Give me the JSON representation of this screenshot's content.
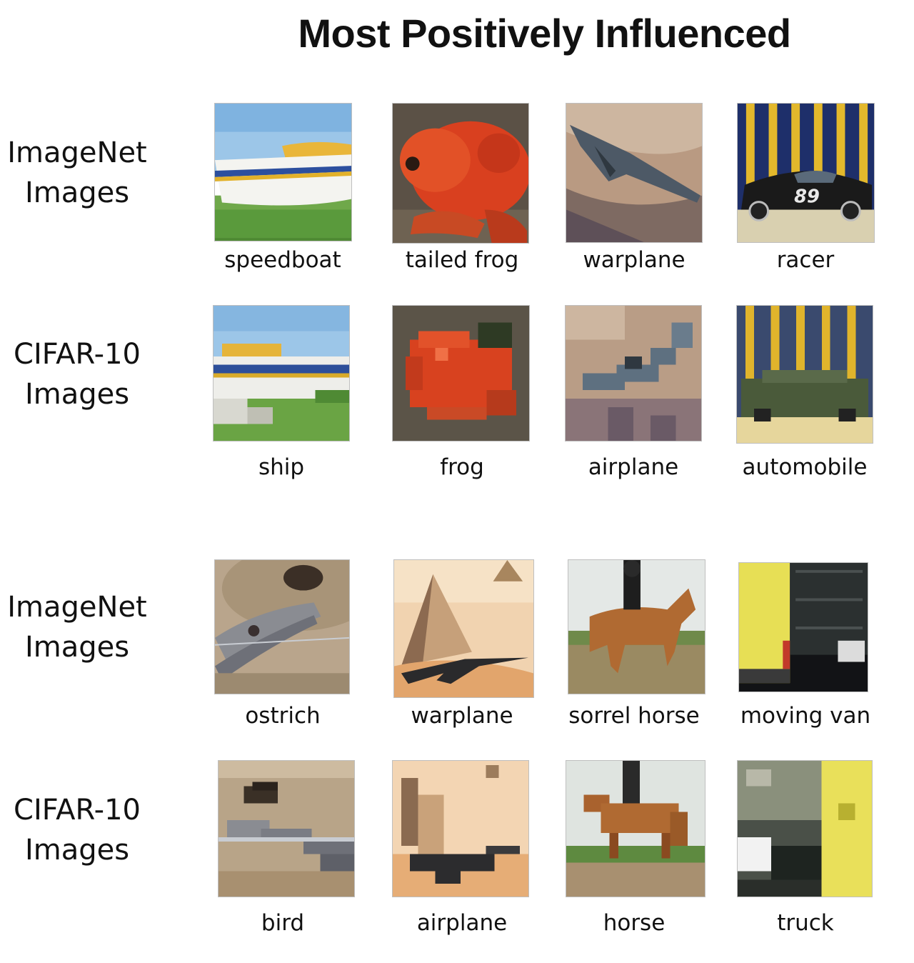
{
  "title": "Most Positively Influenced",
  "groups": [
    {
      "imagenet_label": [
        "ImageNet",
        "Images"
      ],
      "cifar_label": [
        "CIFAR-10",
        "Images"
      ],
      "imagenet_captions": [
        "speedboat",
        "tailed frog",
        "warplane",
        "racer"
      ],
      "cifar_captions": [
        "ship",
        "frog",
        "airplane",
        "automobile"
      ]
    },
    {
      "imagenet_label": [
        "ImageNet",
        "Images"
      ],
      "cifar_label": [
        "CIFAR-10",
        "Images"
      ],
      "imagenet_captions": [
        "ostrich",
        "warplane",
        "sorrel horse",
        "moving van"
      ],
      "cifar_captions": [
        "bird",
        "airplane",
        "horse",
        "truck"
      ]
    }
  ],
  "image_icons": [
    [
      "speedboat-photo",
      "tailed-frog-photo",
      "warplane-photo",
      "racer-photo"
    ],
    [
      "ship-photo",
      "frog-photo",
      "airplane-photo",
      "automobile-photo"
    ],
    [
      "ostrich-photo",
      "warplane-pyramids-photo",
      "sorrel-horse-photo",
      "moving-van-photo"
    ],
    [
      "bird-photo",
      "airplane-photo",
      "horse-photo",
      "truck-photo"
    ]
  ]
}
